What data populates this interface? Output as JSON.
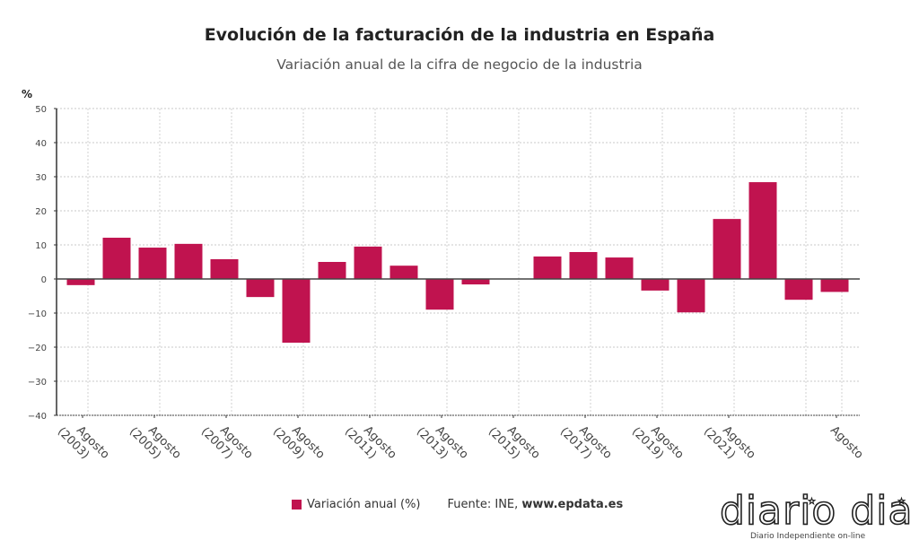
{
  "chart_data": {
    "type": "bar",
    "title": "Evolución de la facturación de la industria en España",
    "subtitle": "Variación anual de la cifra de negocio de la industria",
    "ylabel": "%",
    "ylim": [
      -40,
      50
    ],
    "yticks": [
      50,
      40,
      30,
      20,
      10,
      0,
      -10,
      -20,
      -30,
      -40
    ],
    "grid": true,
    "categories": [
      "Agosto (2003)",
      "",
      "Agosto (2005)",
      "",
      "Agosto (2007)",
      "",
      "Agosto (2009)",
      "",
      "Agosto (2011)",
      "",
      "Agosto (2013)",
      "",
      "Agosto (2015)",
      "",
      "Agosto (2017)",
      "",
      "Agosto (2019)",
      "",
      "Agosto (2021)",
      "",
      "",
      "Agosto"
    ],
    "series": [
      {
        "name": "Variación anual (%)",
        "color": "#c0134f",
        "values": [
          -1.8,
          12.1,
          9.2,
          10.3,
          5.8,
          -5.3,
          -18.7,
          5.0,
          9.5,
          3.9,
          -9.0,
          -1.6,
          null,
          6.6,
          7.9,
          6.3,
          -3.4,
          -9.8,
          17.6,
          28.4,
          -6.1,
          -3.8
        ]
      }
    ],
    "legend_position": "bottom"
  },
  "legend": {
    "label": "Variación anual (%)",
    "source_prefix": "Fuente: INE, ",
    "source_site": "www.epdata.es"
  },
  "watermark": {
    "text": "diario dia",
    "tagline": "Diario Independiente on-line"
  }
}
